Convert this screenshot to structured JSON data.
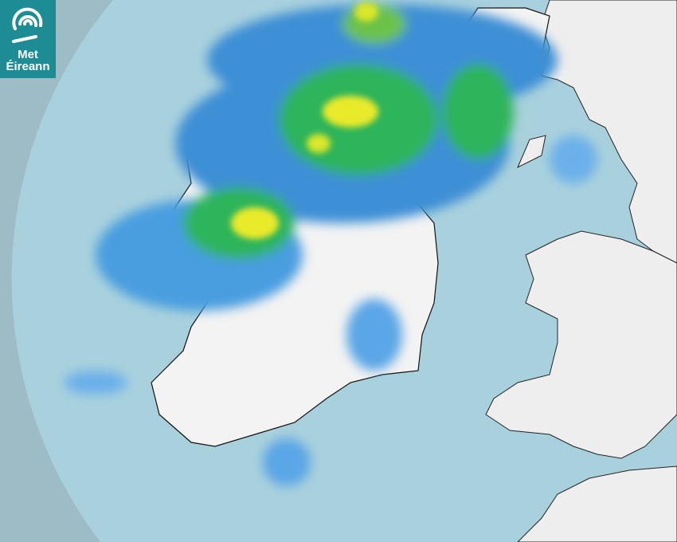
{
  "logo": {
    "line1": "Met",
    "line2": "Éireann",
    "icon": "swirl-logo-icon"
  },
  "colors": {
    "outside_coverage": "#9dbcc6",
    "sea": "#a9d1dd",
    "land": "#f2f2f2",
    "rain_light": "#3d8fd6",
    "rain_moderate": "#2fb45a",
    "rain_heavy": "#e8ea2a",
    "brand": "#1e8c94"
  }
}
